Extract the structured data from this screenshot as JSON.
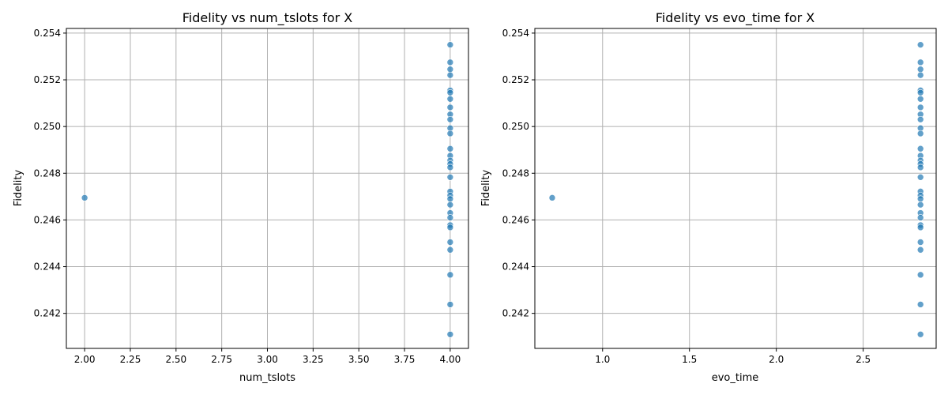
{
  "chart_data": [
    {
      "type": "scatter",
      "title": "Fidelity vs num_tslots for X",
      "xlabel": "num_tslots",
      "ylabel": "Fidelity",
      "xlim": [
        1.9,
        4.1
      ],
      "ylim": [
        0.2405,
        0.2542
      ],
      "xticks": [
        2.0,
        2.25,
        2.5,
        2.75,
        3.0,
        3.25,
        3.5,
        3.75,
        4.0
      ],
      "xtick_labels": [
        "2.00",
        "2.25",
        "2.50",
        "2.75",
        "3.00",
        "3.25",
        "3.50",
        "3.75",
        "4.00"
      ],
      "yticks": [
        0.242,
        0.244,
        0.246,
        0.248,
        0.25,
        0.252,
        0.254
      ],
      "ytick_labels": [
        "0.242",
        "0.244",
        "0.246",
        "0.248",
        "0.250",
        "0.252",
        "0.254"
      ],
      "grid": true,
      "points": [
        {
          "x": 2.0,
          "y": 0.24695
        },
        {
          "x": 4.0,
          "y": 0.2535
        },
        {
          "x": 4.0,
          "y": 0.25275
        },
        {
          "x": 4.0,
          "y": 0.25245
        },
        {
          "x": 4.0,
          "y": 0.2522
        },
        {
          "x": 4.0,
          "y": 0.25155
        },
        {
          "x": 4.0,
          "y": 0.25145
        },
        {
          "x": 4.0,
          "y": 0.25118
        },
        {
          "x": 4.0,
          "y": 0.25082
        },
        {
          "x": 4.0,
          "y": 0.25052
        },
        {
          "x": 4.0,
          "y": 0.2503
        },
        {
          "x": 4.0,
          "y": 0.24993
        },
        {
          "x": 4.0,
          "y": 0.2497
        },
        {
          "x": 4.0,
          "y": 0.24905
        },
        {
          "x": 4.0,
          "y": 0.24875
        },
        {
          "x": 4.0,
          "y": 0.24855
        },
        {
          "x": 4.0,
          "y": 0.2484
        },
        {
          "x": 4.0,
          "y": 0.24825
        },
        {
          "x": 4.0,
          "y": 0.24783
        },
        {
          "x": 4.0,
          "y": 0.24722
        },
        {
          "x": 4.0,
          "y": 0.24705
        },
        {
          "x": 4.0,
          "y": 0.2469
        },
        {
          "x": 4.0,
          "y": 0.24665
        },
        {
          "x": 4.0,
          "y": 0.2463
        },
        {
          "x": 4.0,
          "y": 0.2461
        },
        {
          "x": 4.0,
          "y": 0.24578
        },
        {
          "x": 4.0,
          "y": 0.24568
        },
        {
          "x": 4.0,
          "y": 0.24505
        },
        {
          "x": 4.0,
          "y": 0.24472
        },
        {
          "x": 4.0,
          "y": 0.24365
        },
        {
          "x": 4.0,
          "y": 0.24238
        },
        {
          "x": 4.0,
          "y": 0.2411
        }
      ]
    },
    {
      "type": "scatter",
      "title": "Fidelity vs evo_time for X",
      "xlabel": "evo_time",
      "ylabel": "Fidelity",
      "xlim": [
        0.61,
        2.92
      ],
      "ylim": [
        0.2405,
        0.2542
      ],
      "xticks": [
        1.0,
        1.5,
        2.0,
        2.5
      ],
      "xtick_labels": [
        "1.0",
        "1.5",
        "2.0",
        "2.5"
      ],
      "yticks": [
        0.242,
        0.244,
        0.246,
        0.248,
        0.25,
        0.252,
        0.254
      ],
      "ytick_labels": [
        "0.242",
        "0.244",
        "0.246",
        "0.248",
        "0.250",
        "0.252",
        "0.254"
      ],
      "grid": true,
      "points": [
        {
          "x": 0.71,
          "y": 0.24695
        },
        {
          "x": 2.83,
          "y": 0.2535
        },
        {
          "x": 2.83,
          "y": 0.25275
        },
        {
          "x": 2.83,
          "y": 0.25245
        },
        {
          "x": 2.83,
          "y": 0.2522
        },
        {
          "x": 2.83,
          "y": 0.25155
        },
        {
          "x": 2.83,
          "y": 0.25145
        },
        {
          "x": 2.83,
          "y": 0.25118
        },
        {
          "x": 2.83,
          "y": 0.25082
        },
        {
          "x": 2.83,
          "y": 0.25052
        },
        {
          "x": 2.83,
          "y": 0.2503
        },
        {
          "x": 2.83,
          "y": 0.24993
        },
        {
          "x": 2.83,
          "y": 0.2497
        },
        {
          "x": 2.83,
          "y": 0.24905
        },
        {
          "x": 2.83,
          "y": 0.24875
        },
        {
          "x": 2.83,
          "y": 0.24855
        },
        {
          "x": 2.83,
          "y": 0.2484
        },
        {
          "x": 2.83,
          "y": 0.24825
        },
        {
          "x": 2.83,
          "y": 0.24783
        },
        {
          "x": 2.83,
          "y": 0.24722
        },
        {
          "x": 2.83,
          "y": 0.24705
        },
        {
          "x": 2.83,
          "y": 0.2469
        },
        {
          "x": 2.83,
          "y": 0.24665
        },
        {
          "x": 2.83,
          "y": 0.2463
        },
        {
          "x": 2.83,
          "y": 0.2461
        },
        {
          "x": 2.83,
          "y": 0.24578
        },
        {
          "x": 2.83,
          "y": 0.24568
        },
        {
          "x": 2.83,
          "y": 0.24505
        },
        {
          "x": 2.83,
          "y": 0.24472
        },
        {
          "x": 2.83,
          "y": 0.24365
        },
        {
          "x": 2.83,
          "y": 0.24238
        },
        {
          "x": 2.83,
          "y": 0.2411
        }
      ]
    }
  ]
}
